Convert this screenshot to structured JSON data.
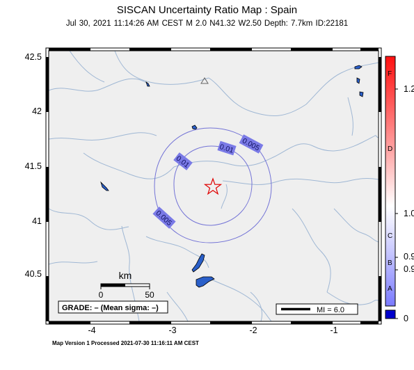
{
  "header": {
    "title": "SISCAN Uncertainty Ratio Map : Spain",
    "event_line": "Jul 30, 2021 11:14:26 AM CEST   M 2.0   N41.32 W2.50   Depth: 7.7km   ID:22181"
  },
  "axes": {
    "lat_ticks": [
      "42.5",
      "42",
      "41.5",
      "41",
      "40.5"
    ],
    "lon_ticks": [
      "-4",
      "-3",
      "-2",
      "-1"
    ]
  },
  "contours": [
    "0.005",
    "0.01",
    "0.01",
    "0.005"
  ],
  "scale_bar": {
    "unit": "km",
    "start": "0",
    "end": "50"
  },
  "grade_box": "GRADE: – (Mean sigma: –)",
  "legend_mi": "MI = 6.0",
  "colorbar": {
    "letters": [
      "F",
      "D",
      "C",
      "B",
      "A"
    ],
    "ticks": [
      "1.2",
      "1.0",
      "0.9",
      "0.9",
      "0"
    ],
    "colors": {
      "top": "#ff0000",
      "mid": "#ffffff",
      "bottom": "#0000ff"
    }
  },
  "footer": "Map Version 1 Processed 2021-07-30 11:16:11 AM CEST",
  "colors": {
    "land": "#efefef",
    "rivers": "#9fb7d4",
    "contour": "#7373d6",
    "epicenter": "#e00000"
  }
}
